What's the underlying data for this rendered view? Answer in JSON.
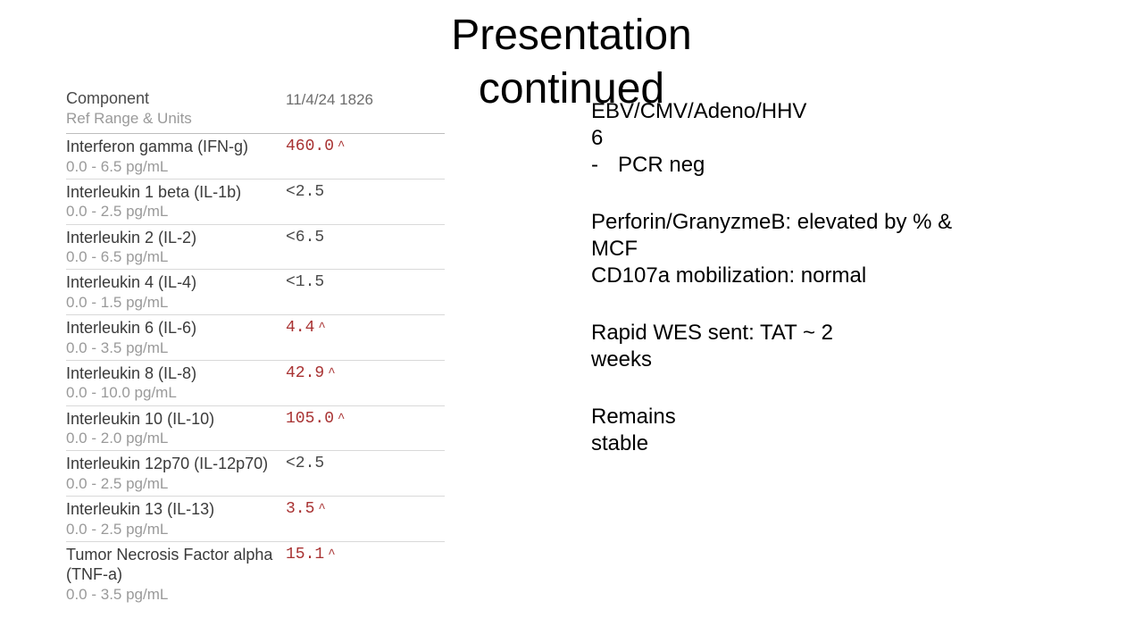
{
  "title_line1": "Presentation",
  "title_line2": "continued",
  "lab": {
    "header_component": "Component",
    "header_sub": "Ref Range & Units",
    "header_date": "11/4/24 1826",
    "normal_color": "#4a4a4a",
    "high_color": "#a83232",
    "rows": [
      {
        "name": "Interferon gamma (IFN-g)",
        "range": "0.0 - 6.5 pg/mL",
        "value": "460.0",
        "flag": "high"
      },
      {
        "name": "Interleukin 1 beta (IL-1b)",
        "range": "0.0 - 2.5 pg/mL",
        "value": "<2.5",
        "flag": "normal"
      },
      {
        "name": "Interleukin 2 (IL-2)",
        "range": "0.0 - 6.5 pg/mL",
        "value": "<6.5",
        "flag": "normal"
      },
      {
        "name": "Interleukin 4 (IL-4)",
        "range": "0.0 - 1.5 pg/mL",
        "value": "<1.5",
        "flag": "normal"
      },
      {
        "name": "Interleukin 6 (IL-6)",
        "range": "0.0 - 3.5 pg/mL",
        "value": "4.4",
        "flag": "high"
      },
      {
        "name": "Interleukin 8 (IL-8)",
        "range": "0.0 - 10.0 pg/mL",
        "value": "42.9",
        "flag": "high"
      },
      {
        "name": "Interleukin 10 (IL-10)",
        "range": "0.0 - 2.0 pg/mL",
        "value": "105.0",
        "flag": "high"
      },
      {
        "name": "Interleukin 12p70 (IL-12p70)",
        "range": "0.0 - 2.5 pg/mL",
        "value": "<2.5",
        "flag": "normal"
      },
      {
        "name": "Interleukin 13 (IL-13)",
        "range": "0.0 - 2.5 pg/mL",
        "value": "3.5",
        "flag": "high"
      },
      {
        "name": "Tumor Necrosis Factor alpha (TNF-a)",
        "range": "0.0 - 3.5 pg/mL",
        "value": "15.1",
        "flag": "high"
      }
    ]
  },
  "notes": {
    "virus_line1": "EBV/CMV/Adeno/HHV",
    "virus_line2": "6",
    "bullet_dash": "-",
    "pcr": "PCR neg",
    "perforin": "Perforin/GranyzmeB: elevated by % & MCF",
    "cd107a": "CD107a mobilization: normal",
    "wes_line1": "Rapid WES sent: TAT ~ 2",
    "wes_line2": "weeks",
    "stable_line1": "Remains",
    "stable_line2": "stable"
  }
}
